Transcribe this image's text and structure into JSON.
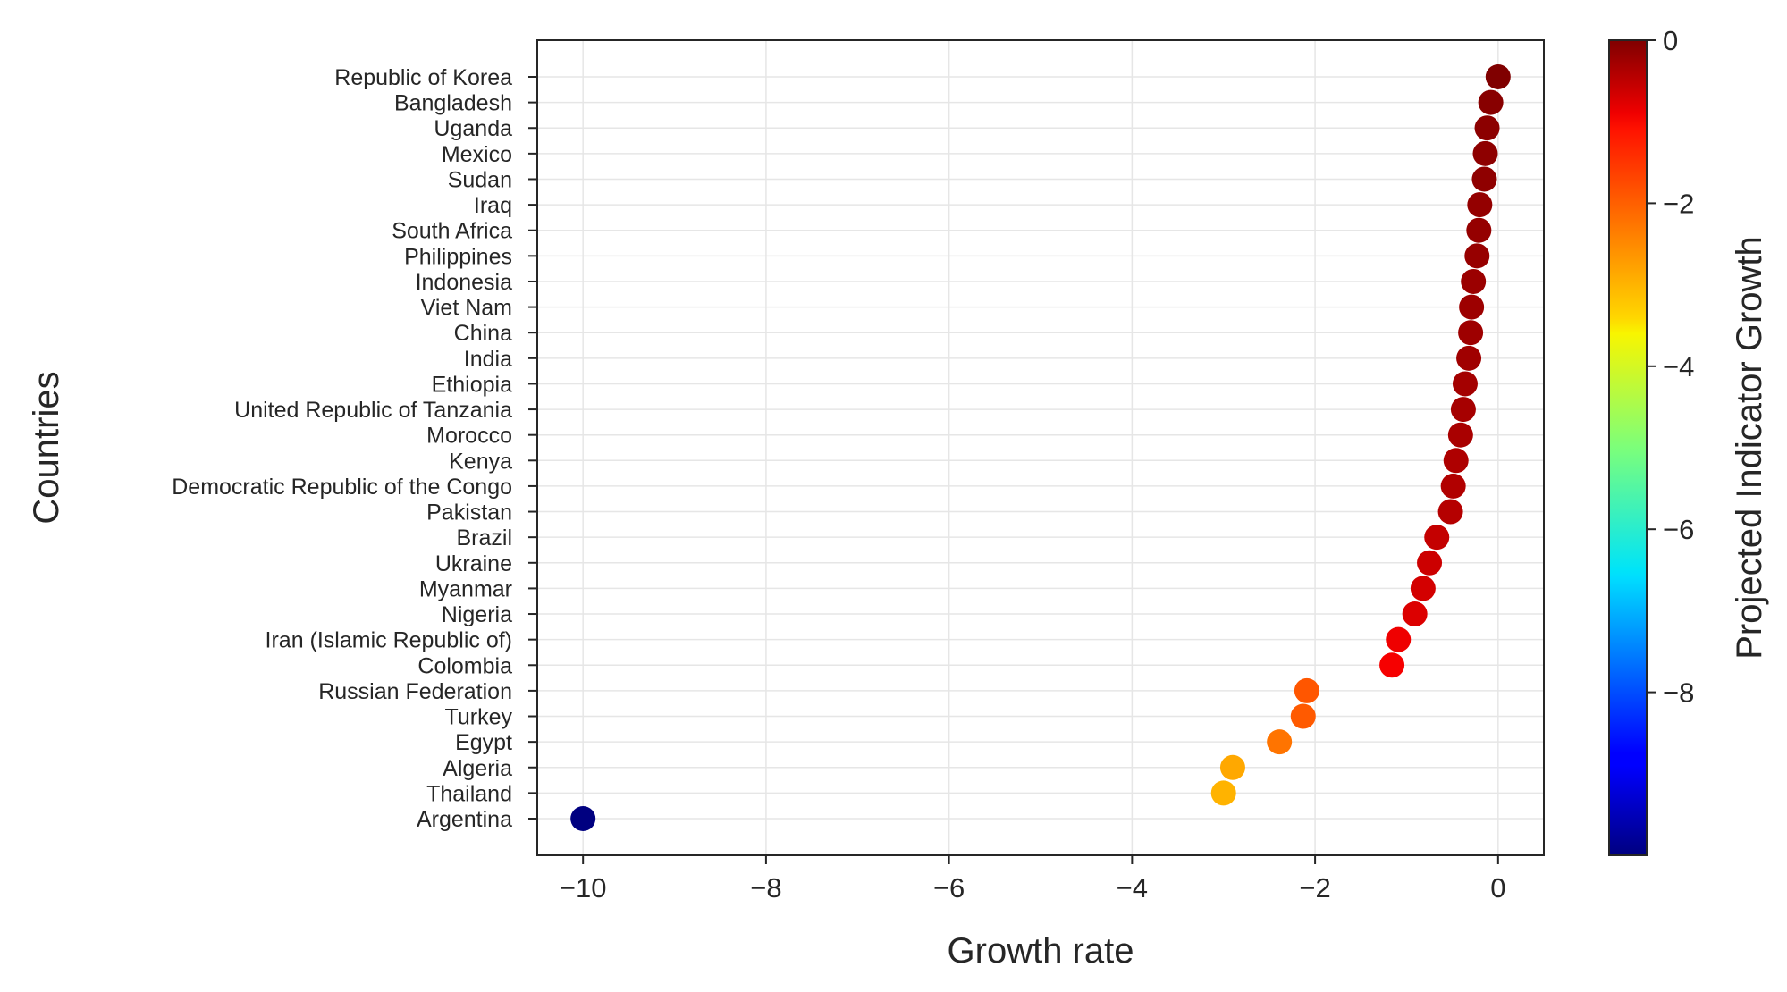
{
  "chart_data": {
    "type": "scatter",
    "orientation": "horizontal",
    "xlabel": "Growth rate",
    "ylabel": "Countries",
    "xlim": [
      -10.5,
      0.5
    ],
    "xticks": [
      -10,
      -8,
      -6,
      -4,
      -2,
      0
    ],
    "xtick_labels": [
      "−10",
      "−8",
      "−6",
      "−4",
      "−2",
      "0"
    ],
    "grid": true,
    "colorbar": {
      "label": "Projected Indicator Growth",
      "colormap": "jet",
      "range": [
        -10,
        0
      ],
      "ticks": [
        0,
        -2,
        -4,
        -6,
        -8
      ],
      "tick_labels": [
        "0",
        "−2",
        "−4",
        "−6",
        "−8"
      ]
    },
    "categories": [
      "Republic of Korea",
      "Bangladesh",
      "Uganda",
      "Mexico",
      "Sudan",
      "Iraq",
      "South Africa",
      "Philippines",
      "Indonesia",
      "Viet Nam",
      "China",
      "India",
      "Ethiopia",
      "United Republic of Tanzania",
      "Morocco",
      "Kenya",
      "Democratic Republic of the Congo",
      "Pakistan",
      "Brazil",
      "Ukraine",
      "Myanmar",
      "Nigeria",
      "Iran (Islamic Republic of)",
      "Colombia",
      "Russian Federation",
      "Turkey",
      "Egypt",
      "Algeria",
      "Thailand",
      "Argentina"
    ],
    "values": [
      0.0,
      -0.08,
      -0.12,
      -0.14,
      -0.15,
      -0.2,
      -0.21,
      -0.23,
      -0.27,
      -0.29,
      -0.3,
      -0.32,
      -0.36,
      -0.38,
      -0.41,
      -0.46,
      -0.49,
      -0.52,
      -0.67,
      -0.75,
      -0.82,
      -0.91,
      -1.09,
      -1.16,
      -2.09,
      -2.13,
      -2.39,
      -2.9,
      -3.0,
      -10.0
    ]
  }
}
